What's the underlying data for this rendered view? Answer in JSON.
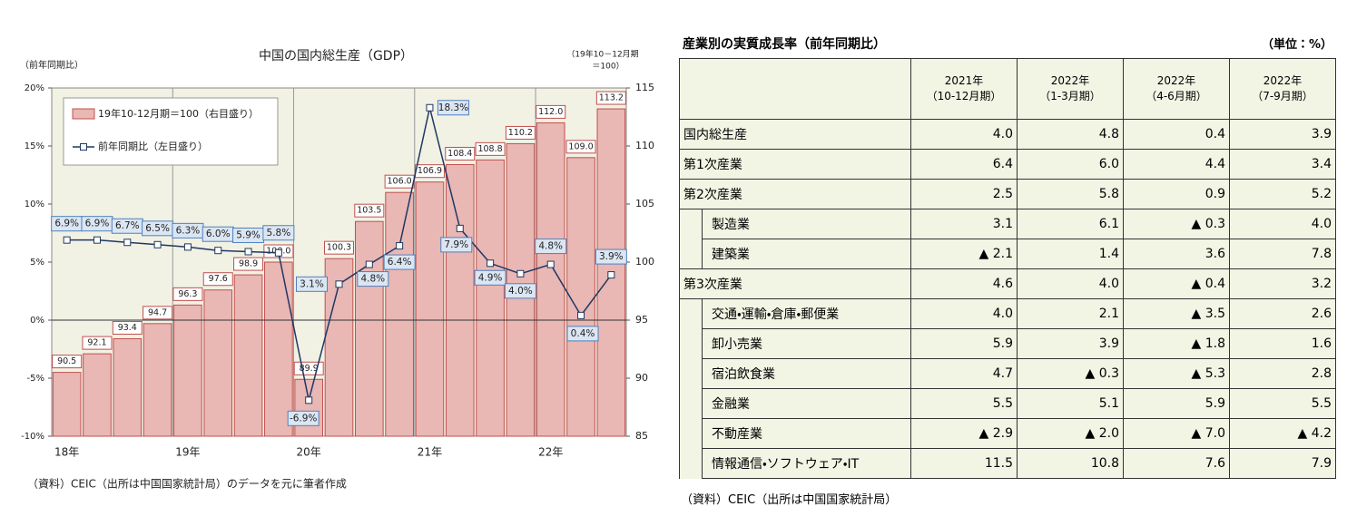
{
  "chart_data": {
    "type": "bar-line",
    "title": "中国の国内総生産（GDP）",
    "left_axis_label": "（前年同期比）",
    "right_axis_label": [
      "（19年10－12月期",
      "＝100）"
    ],
    "categories": [
      "18年",
      null,
      null,
      null,
      "19年",
      null,
      null,
      null,
      "20年",
      null,
      null,
      null,
      "21年",
      null,
      null,
      null,
      "22年",
      null,
      null
    ],
    "series": [
      {
        "name": "19年10-12月期＝100（右目盛り）",
        "type": "bar",
        "axis": "y2",
        "color": "#e9b7b4",
        "edge": "#c0504d",
        "values": [
          90.5,
          92.1,
          93.4,
          94.7,
          96.3,
          97.6,
          98.9,
          100.0,
          89.9,
          100.3,
          103.5,
          106.0,
          106.9,
          108.4,
          108.8,
          110.2,
          112.0,
          109.0,
          113.2
        ],
        "value_labels": [
          "90.5",
          "92.1",
          "93.4",
          "94.7",
          "96.3",
          "97.6",
          "98.9",
          "100.0",
          "89.9",
          "100.3",
          "103.5",
          "106.0",
          "106.9",
          "108.4",
          "108.8",
          "110.2",
          "112.0",
          "109.0",
          "113.2"
        ]
      },
      {
        "name": "前年同期比（左目盛り）",
        "type": "line",
        "color": "#1f3864",
        "values": [
          6.9,
          6.9,
          6.7,
          6.5,
          6.3,
          6.0,
          5.9,
          5.8,
          -6.9,
          3.1,
          4.8,
          6.4,
          18.3,
          7.9,
          4.9,
          4.0,
          4.8,
          0.4,
          3.9
        ],
        "value_labels": [
          "6.9%",
          "6.9%",
          "6.7%",
          "6.5%",
          "6.3%",
          "6.0%",
          "5.9%",
          "5.8%",
          "-6.9%",
          "3.1%",
          "4.8%",
          "6.4%",
          "18.3%",
          "7.9%",
          "4.9%",
          "4.0%",
          "4.8%",
          "0.4%",
          "3.9%"
        ]
      }
    ],
    "ylim": [
      -10,
      20
    ],
    "yticks": [
      {
        "value": -10,
        "label": "-10%"
      },
      {
        "value": -5,
        "label": "-5%"
      },
      {
        "value": 0,
        "label": "0%"
      },
      {
        "value": 5,
        "label": "5%"
      },
      {
        "value": 10,
        "label": "10%"
      },
      {
        "value": 15,
        "label": "15%"
      },
      {
        "value": 20,
        "label": "20%"
      }
    ],
    "y2lim": [
      85,
      115
    ],
    "y2ticks": [
      85,
      90,
      95,
      100,
      105,
      110,
      115
    ],
    "note": "（資料）CEIC（出所は中国国家統計局）のデータを元に筆者作成"
  },
  "table": {
    "title": "産業別の実質成長率（前年同期比）",
    "unit": "（単位：%）",
    "header": [
      [
        "2021年",
        "（10-12月期）"
      ],
      [
        "2022年",
        "（1-3月期）"
      ],
      [
        "2022年",
        "（4-6月期）"
      ],
      [
        "2022年",
        "（7-9月期）"
      ]
    ],
    "rows": [
      [
        "国内総生産",
        "4.0",
        "4.8",
        "0.4",
        "3.9"
      ],
      [
        "第1次産業",
        "6.4",
        "6.0",
        "4.4",
        "3.4"
      ],
      [
        "第2次産業",
        "2.5",
        "5.8",
        "0.9",
        "5.2"
      ],
      [
        "製造業",
        "3.1",
        "6.1",
        "▲ 0.3",
        "4.0"
      ],
      [
        "建築業",
        "▲ 2.1",
        "1.4",
        "3.6",
        "7.8"
      ],
      [
        "第3次産業",
        "4.6",
        "4.0",
        "▲ 0.4",
        "3.2"
      ],
      [
        "交通・運輸・倉庫・郵便業",
        "4.0",
        "2.1",
        "▲ 3.5",
        "2.6"
      ],
      [
        "卸小売業",
        "5.9",
        "3.9",
        "▲ 1.8",
        "1.6"
      ],
      [
        "宿泊飲食業",
        "4.7",
        "▲ 0.3",
        "▲ 5.3",
        "2.8"
      ],
      [
        "金融業",
        "5.5",
        "5.1",
        "5.9",
        "5.5"
      ],
      [
        "不動産業",
        "▲ 2.9",
        "▲ 2.0",
        "▲ 7.0",
        "▲ 4.2"
      ],
      [
        "情報通信・ソフトウェア・IT",
        "11.5",
        "10.8",
        "7.6",
        "7.9"
      ]
    ],
    "source": "（資料）CEIC（出所は中国国家統計局）"
  }
}
